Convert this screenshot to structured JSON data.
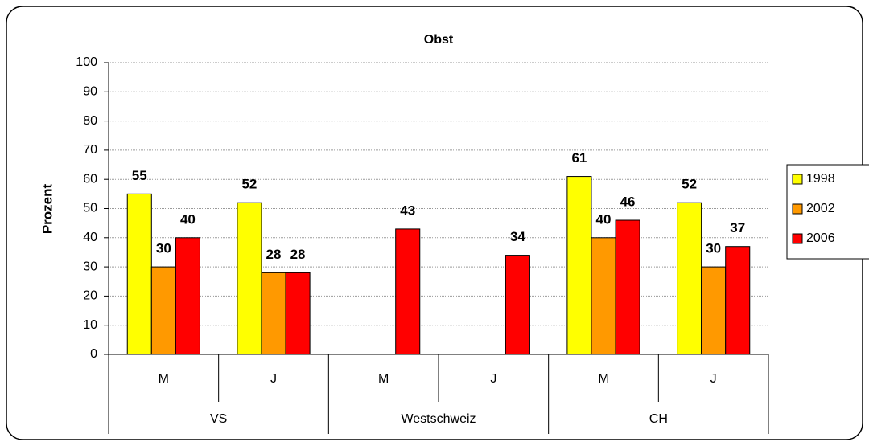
{
  "chart_data": {
    "type": "bar",
    "title": "Obst",
    "y_label": "Prozent",
    "categories": [
      "M",
      "J",
      "M",
      "J",
      "M",
      "J"
    ],
    "groups": [
      "VS",
      "Westschweiz",
      "CH"
    ],
    "series": [
      {
        "name": "1998",
        "color": "#ffff00",
        "values": [
          55,
          52,
          null,
          null,
          61,
          52
        ]
      },
      {
        "name": "2002",
        "color": "#ff9900",
        "values": [
          30,
          28,
          null,
          null,
          40,
          30
        ]
      },
      {
        "name": "2006",
        "color": "#ff0000",
        "values": [
          40,
          28,
          43,
          34,
          46,
          37
        ]
      }
    ],
    "ylim": [
      0,
      100
    ],
    "yticks": [
      0,
      10,
      20,
      30,
      40,
      50,
      60,
      70,
      80,
      90,
      100
    ],
    "grid": true,
    "legend": "right"
  }
}
